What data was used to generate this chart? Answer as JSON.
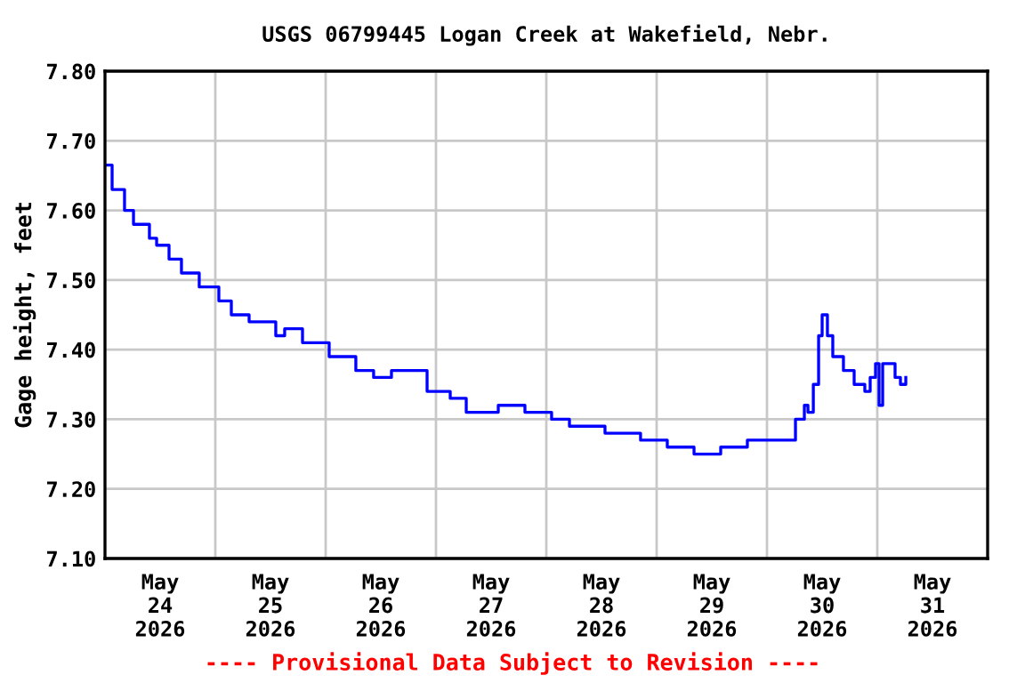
{
  "chart_data": {
    "type": "step",
    "title": "USGS 06799445 Logan Creek at Wakefield, Nebr.",
    "ylabel": "Gage height, feet",
    "annotations": [
      "---- Provisional Data Subject to Revision ----"
    ],
    "x": [
      "2026-05-24T00:23",
      "2026-05-24T01:33",
      "2026-05-24T04:15",
      "2026-05-24T06:12",
      "2026-05-24T09:40",
      "2026-05-24T11:14",
      "2026-05-24T13:56",
      "2026-05-24T16:38",
      "2026-05-24T20:30",
      "2026-05-25T00:46",
      "2026-05-25T03:29",
      "2026-05-25T07:21",
      "2026-05-25T13:09",
      "2026-05-25T15:05",
      "2026-05-25T18:58",
      "2026-05-26T00:46",
      "2026-05-26T06:34",
      "2026-05-26T10:26",
      "2026-05-26T14:19",
      "2026-05-26T22:04",
      "2026-05-27T03:06",
      "2026-05-27T06:35",
      "2026-05-27T13:33",
      "2026-05-27T19:21",
      "2026-05-28T01:09",
      "2026-05-28T05:02",
      "2026-05-28T12:46",
      "2026-05-28T20:30",
      "2026-05-29T02:19",
      "2026-05-29T08:08",
      "2026-05-29T13:56",
      "2026-05-29T19:44",
      "2026-05-30T03:29",
      "2026-05-30T06:12",
      "2026-05-30T08:08",
      "2026-05-30T08:55",
      "2026-05-30T10:05",
      "2026-05-30T11:14",
      "2026-05-30T12:00",
      "2026-05-30T13:09",
      "2026-05-30T14:19",
      "2026-05-30T16:38",
      "2026-05-30T18:58",
      "2026-05-30T21:17",
      "2026-05-30T22:27",
      "2026-05-30T23:37",
      "2026-05-31T00:23",
      "2026-05-31T01:10",
      "2026-05-31T03:52",
      "2026-05-31T05:02",
      "2026-05-31T06:12"
    ],
    "series": [
      {
        "color": "#0000ff",
        "values": [
          7.665,
          7.63,
          7.6,
          7.58,
          7.56,
          7.55,
          7.53,
          7.51,
          7.49,
          7.47,
          7.45,
          7.44,
          7.42,
          7.43,
          7.41,
          7.39,
          7.37,
          7.36,
          7.37,
          7.34,
          7.33,
          7.31,
          7.32,
          7.31,
          7.3,
          7.29,
          7.28,
          7.27,
          7.26,
          7.25,
          7.26,
          7.27,
          7.27,
          7.3,
          7.32,
          7.31,
          7.35,
          7.42,
          7.45,
          7.42,
          7.39,
          7.37,
          7.35,
          7.34,
          7.36,
          7.38,
          7.32,
          7.38,
          7.36,
          7.35,
          7.36
        ]
      }
    ],
    "xlim": [
      "2026-05-24T00:00",
      "2026-06-01T00:00"
    ],
    "xticks": [
      {
        "value": "2026-05-25T00:00",
        "label": null
      },
      {
        "value": "2026-05-26T00:00",
        "label": null
      },
      {
        "value": "2026-05-27T00:00",
        "label": null
      },
      {
        "value": "2026-05-28T00:00",
        "label": null
      },
      {
        "value": "2026-05-29T00:00",
        "label": null
      },
      {
        "value": "2026-05-30T00:00",
        "label": null
      },
      {
        "value": "2026-05-31T00:00",
        "label": null
      },
      {
        "value": "2026-05-24T12:00",
        "label": "May\n24\n2026"
      },
      {
        "value": "2026-05-25T12:00",
        "label": "May\n25\n2026"
      },
      {
        "value": "2026-05-26T12:00",
        "label": "May\n26\n2026"
      },
      {
        "value": "2026-05-27T12:00",
        "label": "May\n27\n2026"
      },
      {
        "value": "2026-05-28T12:00",
        "label": "May\n28\n2026"
      },
      {
        "value": "2026-05-29T12:00",
        "label": "May\n29\n2026"
      },
      {
        "value": "2026-05-30T12:00",
        "label": "May\n30\n2026"
      },
      {
        "value": "2026-05-31T12:00",
        "label": "May\n31\n2026"
      }
    ],
    "ylim": [
      7.1,
      7.8
    ],
    "yticks": [
      {
        "value": 7.1,
        "label": "7.10"
      },
      {
        "value": 7.2,
        "label": "7.20"
      },
      {
        "value": 7.3,
        "label": "7.30"
      },
      {
        "value": 7.4,
        "label": "7.40"
      },
      {
        "value": 7.5,
        "label": "7.50"
      },
      {
        "value": 7.6,
        "label": "7.60"
      },
      {
        "value": 7.7,
        "label": "7.70"
      },
      {
        "value": 7.8,
        "label": "7.80"
      }
    ],
    "grid": true,
    "legend": false,
    "line_style": "solid",
    "marker": "none"
  }
}
